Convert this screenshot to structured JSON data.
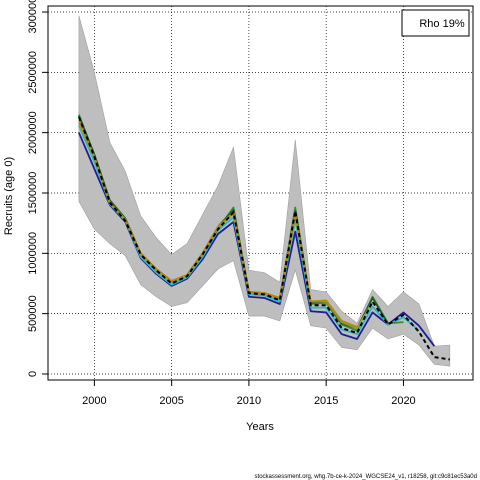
{
  "chart_data": {
    "type": "line",
    "title": "",
    "xlabel": "Years",
    "ylabel": "Recruits (age 0)",
    "xlim": [
      1997,
      2024.5
    ],
    "ylim": [
      -50000,
      3050000
    ],
    "x_ticks": [
      2000,
      2005,
      2010,
      2015,
      2020
    ],
    "y_ticks": [
      0,
      500000,
      1000000,
      1500000,
      2000000,
      2500000,
      3000000
    ],
    "grid": true,
    "legend": {
      "placement": "top-right",
      "label": "Rho 19%"
    },
    "footer": "stockassessment.org, whg.7b-ce-k-2024_WGCSE24_v1, r18258, git:c9c81ec53a0d",
    "colors": {
      "band": "#bebebe",
      "band_edge": "#9e9e9e",
      "grid": "#000000",
      "final": "#000000"
    },
    "confidence_band": {
      "x": [
        1999,
        2000,
        2001,
        2002,
        2003,
        2004,
        2005,
        2006,
        2007,
        2008,
        2009,
        2010,
        2011,
        2012,
        2013,
        2014,
        2015,
        2016,
        2017,
        2018,
        2019,
        2020,
        2021,
        2022,
        2023
      ],
      "lower": [
        1430000,
        1200000,
        1080000,
        980000,
        740000,
        640000,
        560000,
        590000,
        730000,
        870000,
        940000,
        480000,
        480000,
        440000,
        860000,
        400000,
        380000,
        220000,
        200000,
        380000,
        290000,
        330000,
        240000,
        80000,
        65000
      ],
      "upper": [
        2970000,
        2500000,
        1920000,
        1680000,
        1310000,
        1130000,
        990000,
        1080000,
        1320000,
        1560000,
        1880000,
        860000,
        840000,
        760000,
        1940000,
        700000,
        680000,
        520000,
        420000,
        700000,
        560000,
        680000,
        580000,
        230000,
        240000
      ]
    },
    "series": [
      {
        "color": "#1e1e96",
        "x": [
          1999,
          2000,
          2001,
          2002,
          2003,
          2004,
          2005,
          2006,
          2007,
          2008,
          2009,
          2010,
          2011,
          2012,
          2013,
          2014,
          2015,
          2016,
          2017,
          2018,
          2019,
          2020,
          2021,
          2022
        ],
        "values": [
          2000000,
          1700000,
          1400000,
          1260000,
          960000,
          830000,
          730000,
          790000,
          950000,
          1160000,
          1260000,
          640000,
          630000,
          580000,
          1180000,
          520000,
          510000,
          330000,
          290000,
          510000,
          410000,
          510000,
          400000,
          230000
        ]
      },
      {
        "color": "#2ab8c8",
        "x": [
          1999,
          2000,
          2001,
          2002,
          2003,
          2004,
          2005,
          2006,
          2007,
          2008,
          2009,
          2010,
          2011,
          2012,
          2013,
          2014,
          2015,
          2016,
          2017,
          2018,
          2019,
          2020,
          2021
        ],
        "values": [
          2060000,
          1760000,
          1410000,
          1270000,
          970000,
          840000,
          740000,
          800000,
          970000,
          1190000,
          1300000,
          660000,
          650000,
          600000,
          1280000,
          550000,
          550000,
          370000,
          330000,
          560000,
          410000,
          470000,
          360000
        ]
      },
      {
        "color": "#3a8a32",
        "x": [
          1999,
          2000,
          2001,
          2002,
          2003,
          2004,
          2005,
          2006,
          2007,
          2008,
          2009,
          2010,
          2011,
          2012,
          2013,
          2014,
          2015,
          2016,
          2017,
          2018,
          2019,
          2020
        ],
        "values": [
          2150000,
          1810000,
          1430000,
          1280000,
          990000,
          860000,
          760000,
          810000,
          990000,
          1200000,
          1380000,
          680000,
          660000,
          620000,
          1380000,
          580000,
          590000,
          410000,
          360000,
          640000,
          420000,
          430000
        ]
      },
      {
        "color": "#1a5e2e",
        "x": [
          1999,
          2000,
          2001,
          2002,
          2003,
          2004,
          2005,
          2006,
          2007,
          2008,
          2009,
          2010,
          2011,
          2012,
          2013,
          2014,
          2015,
          2016,
          2017,
          2018,
          2019
        ],
        "values": [
          2140000,
          1820000,
          1440000,
          1290000,
          1000000,
          870000,
          770000,
          820000,
          1000000,
          1220000,
          1360000,
          680000,
          670000,
          630000,
          1350000,
          590000,
          600000,
          420000,
          380000,
          630000,
          420000
        ]
      },
      {
        "color": "#8fa13a",
        "x": [
          1999,
          2000,
          2001,
          2002,
          2003,
          2004,
          2005,
          2006,
          2007,
          2008,
          2009,
          2010,
          2011,
          2012,
          2013,
          2014,
          2015,
          2016,
          2017,
          2018
        ],
        "values": [
          2080000,
          1790000,
          1420000,
          1280000,
          990000,
          860000,
          760000,
          810000,
          990000,
          1210000,
          1330000,
          670000,
          660000,
          620000,
          1310000,
          600000,
          600000,
          430000,
          380000,
          600000
        ]
      },
      {
        "color": "#b8860b",
        "x": [
          1999,
          2000,
          2001,
          2002,
          2003,
          2004,
          2005,
          2006,
          2007,
          2008,
          2009,
          2010,
          2011,
          2012,
          2013,
          2014,
          2015,
          2016,
          2017
        ],
        "values": [
          2100000,
          1800000,
          1420000,
          1280000,
          1000000,
          870000,
          770000,
          820000,
          1000000,
          1220000,
          1340000,
          680000,
          670000,
          630000,
          1330000,
          600000,
          610000,
          440000,
          390000
        ]
      }
    ],
    "final_series": {
      "x": [
        1999,
        2000,
        2001,
        2002,
        2003,
        2004,
        2005,
        2006,
        2007,
        2008,
        2009,
        2010,
        2011,
        2012,
        2013,
        2014,
        2015,
        2016,
        2017,
        2018,
        2019,
        2020,
        2021,
        2022,
        2023
      ],
      "values": [
        2130000,
        1800000,
        1420000,
        1270000,
        990000,
        860000,
        750000,
        810000,
        990000,
        1200000,
        1340000,
        670000,
        660000,
        610000,
        1350000,
        570000,
        570000,
        380000,
        340000,
        600000,
        410000,
        490000,
        350000,
        140000,
        120000
      ]
    }
  }
}
